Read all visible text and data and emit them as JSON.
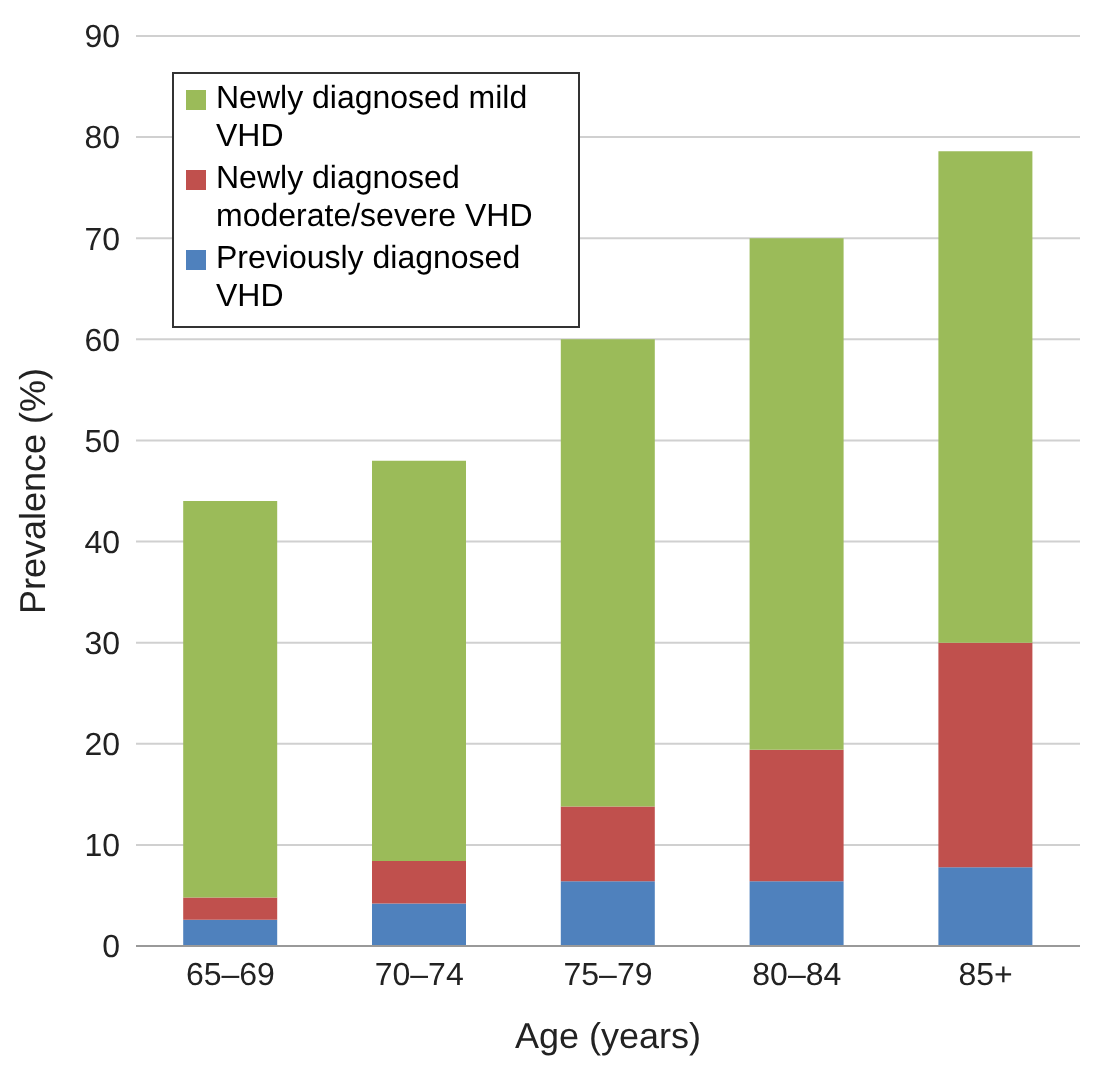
{
  "chart_data": {
    "type": "bar",
    "stacked": true,
    "xlabel": "Age (years)",
    "ylabel": "Prevalence (%)",
    "categories": [
      "65–69",
      "70–74",
      "75–79",
      "80–84",
      "85+"
    ],
    "series": [
      {
        "name": "Previously diagnosed VHD",
        "color": "#4f81bd",
        "values": [
          2.6,
          4.2,
          6.4,
          6.4,
          7.8
        ]
      },
      {
        "name": "Newly diagnosed moderate/severe VHD",
        "color": "#c0504d",
        "values": [
          2.2,
          4.2,
          7.4,
          13.0,
          22.2
        ]
      },
      {
        "name": "Newly diagnosed mild VHD",
        "color": "#9bbb59",
        "values": [
          39.2,
          39.6,
          46.2,
          50.6,
          48.6
        ]
      }
    ],
    "ylim": [
      0,
      90
    ],
    "yticks": [
      0,
      10,
      20,
      30,
      40,
      50,
      60,
      70,
      80,
      90
    ],
    "grid": "y",
    "legend": "top left"
  }
}
